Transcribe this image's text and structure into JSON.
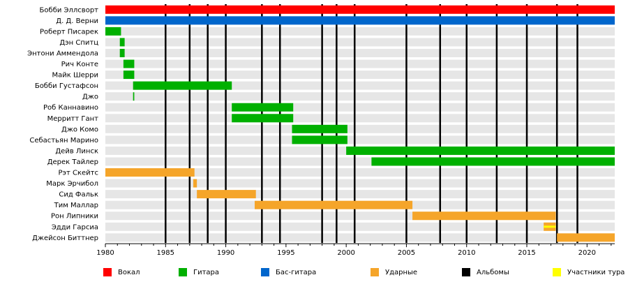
{
  "chart_data": {
    "type": "timeline",
    "x_range": [
      1980,
      2022.3
    ],
    "ticks": [
      1980,
      1985,
      1990,
      1995,
      2000,
      2005,
      2010,
      2015,
      2020
    ],
    "album_years": [
      1985,
      1987,
      1988.5,
      1990,
      1993,
      1994.5,
      1998,
      1999.2,
      2000.7,
      2005,
      2007.8,
      2010,
      2012.5,
      2015,
      2017.5,
      2019.2
    ],
    "members": [
      {
        "name": "Бобби Эллсворт",
        "bars": [
          {
            "role": "vocal",
            "start": 1980,
            "end": 2022.3
          }
        ]
      },
      {
        "name": "Д. Д. Верни",
        "bars": [
          {
            "role": "bass",
            "start": 1980,
            "end": 2022.3
          }
        ]
      },
      {
        "name": "Роберт Писарек",
        "bars": [
          {
            "role": "guitar",
            "start": 1980,
            "end": 1981.3
          }
        ]
      },
      {
        "name": "Дэн Спитц",
        "bars": [
          {
            "role": "guitar",
            "start": 1981.2,
            "end": 1981.6
          }
        ]
      },
      {
        "name": "Энтони Аммендола",
        "bars": [
          {
            "role": "guitar",
            "start": 1981.2,
            "end": 1981.6
          }
        ]
      },
      {
        "name": "Рич Конте",
        "bars": [
          {
            "role": "guitar",
            "start": 1981.5,
            "end": 1982.4
          }
        ]
      },
      {
        "name": "Майк Шерри",
        "bars": [
          {
            "role": "guitar",
            "start": 1981.5,
            "end": 1982.4
          }
        ]
      },
      {
        "name": "Бобби Густафсон",
        "bars": [
          {
            "role": "guitar",
            "start": 1982.3,
            "end": 1990.5
          }
        ]
      },
      {
        "name": "Джо",
        "bars": [
          {
            "role": "guitar",
            "start": 1982.3,
            "end": 1982.4
          }
        ]
      },
      {
        "name": "Роб Каннавино",
        "bars": [
          {
            "role": "guitar",
            "start": 1990.5,
            "end": 1995.6
          }
        ]
      },
      {
        "name": "Мерритт Гант",
        "bars": [
          {
            "role": "guitar",
            "start": 1990.5,
            "end": 1995.6
          }
        ]
      },
      {
        "name": "Джо Комо",
        "bars": [
          {
            "role": "guitar",
            "start": 1995.5,
            "end": 2000.1
          }
        ]
      },
      {
        "name": "Себастьян Марино",
        "bars": [
          {
            "role": "guitar",
            "start": 1995.5,
            "end": 2000.1
          }
        ]
      },
      {
        "name": "Дейв Линск",
        "bars": [
          {
            "role": "guitar",
            "start": 2000,
            "end": 2022.3
          }
        ]
      },
      {
        "name": "Дерек Тайлер",
        "bars": [
          {
            "role": "guitar",
            "start": 2002.1,
            "end": 2022.3
          }
        ]
      },
      {
        "name": "Рэт Скейтс",
        "bars": [
          {
            "role": "drums",
            "start": 1980,
            "end": 1987.4
          }
        ]
      },
      {
        "name": "Марк Эрчибол",
        "bars": [
          {
            "role": "drums",
            "start": 1987.3,
            "end": 1987.6
          }
        ]
      },
      {
        "name": "Сид Фальк",
        "bars": [
          {
            "role": "drums",
            "start": 1987.6,
            "end": 1992.5
          }
        ]
      },
      {
        "name": "Тим Маллар",
        "bars": [
          {
            "role": "drums",
            "start": 1992.4,
            "end": 2005.5
          }
        ]
      },
      {
        "name": "Рон Липники",
        "bars": [
          {
            "role": "drums",
            "start": 2005.5,
            "end": 2017.4
          }
        ]
      },
      {
        "name": "Эдди Гарсиа",
        "bars": [
          {
            "role": "drums",
            "start": 2016.4,
            "end": 2017.4
          },
          {
            "role": "tour",
            "start": 2016.4,
            "end": 2017.4,
            "thin": true
          }
        ]
      },
      {
        "name": "Джейсон Биттнер",
        "bars": [
          {
            "role": "drums",
            "start": 2017.5,
            "end": 2022.3
          }
        ]
      }
    ],
    "colors": {
      "vocal": "#ff0000",
      "guitar": "#00b000",
      "bass": "#0066cc",
      "drums": "#f5a52a",
      "albums": "#000000",
      "tour": "#ffff00",
      "row_bg": "#e6e6e6"
    },
    "legend": [
      {
        "key": "vocal",
        "label": "Вокал"
      },
      {
        "key": "guitar",
        "label": "Гитара"
      },
      {
        "key": "bass",
        "label": "Бас-гитара"
      },
      {
        "key": "drums",
        "label": "Ударные"
      },
      {
        "key": "albums",
        "label": "Альбомы"
      },
      {
        "key": "tour",
        "label": "Участники тура"
      }
    ]
  }
}
